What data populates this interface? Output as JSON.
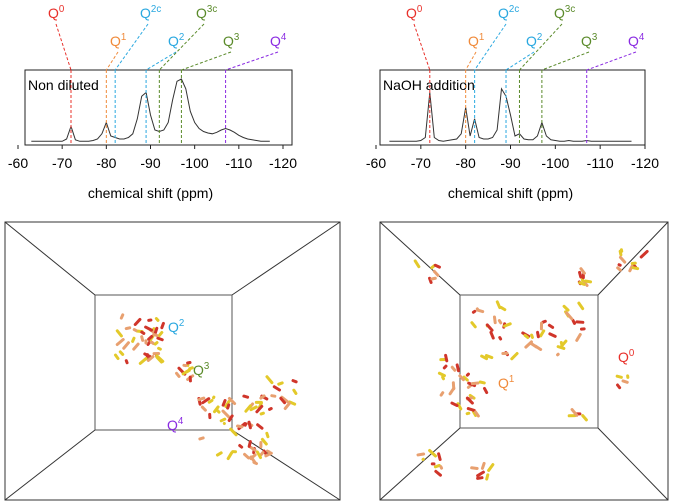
{
  "chart_data": [
    {
      "type": "line",
      "annotation": "Non diluted",
      "xlabel": "chemical shift (ppm)",
      "xlim": [
        -60,
        -120
      ],
      "ylim": [
        0,
        1
      ],
      "xticks": [
        -60,
        -70,
        -80,
        -90,
        -100,
        -110,
        -120
      ],
      "color": "#333333",
      "x": [
        -63,
        -64,
        -65,
        -66,
        -67,
        -68,
        -69,
        -70,
        -71,
        -72,
        -73,
        -74,
        -75,
        -76,
        -77,
        -78,
        -79,
        -80,
        -81,
        -82,
        -83,
        -84,
        -85,
        -86,
        -87,
        -88,
        -89,
        -90,
        -91,
        -92,
        -93,
        -94,
        -95,
        -96,
        -97,
        -98,
        -99,
        -100,
        -101,
        -102,
        -103,
        -104,
        -105,
        -106,
        -107,
        -108,
        -109,
        -110,
        -111,
        -112,
        -113,
        -114,
        -115,
        -116,
        -117
      ],
      "values": [
        0.05,
        0.05,
        0.05,
        0.05,
        0.05,
        0.05,
        0.05,
        0.05,
        0.08,
        0.25,
        0.07,
        0.05,
        0.05,
        0.05,
        0.06,
        0.08,
        0.15,
        0.3,
        0.12,
        0.1,
        0.08,
        0.08,
        0.1,
        0.15,
        0.35,
        0.65,
        0.7,
        0.4,
        0.2,
        0.18,
        0.2,
        0.3,
        0.6,
        0.85,
        0.88,
        0.75,
        0.45,
        0.3,
        0.22,
        0.18,
        0.16,
        0.15,
        0.17,
        0.2,
        0.22,
        0.2,
        0.17,
        0.13,
        0.1,
        0.08,
        0.07,
        0.06,
        0.05,
        0.05,
        0.05
      ],
      "peak_labels": [
        {
          "text": "Q",
          "superscript": "0",
          "x": -72,
          "color": "#e8302a"
        },
        {
          "text": "Q",
          "superscript": "1",
          "x": -80,
          "color": "#f08a3a"
        },
        {
          "text": "Q",
          "superscript": "2c",
          "x": -82,
          "color": "#2aa8e0"
        },
        {
          "text": "Q",
          "superscript": "2",
          "x": -89,
          "color": "#2aa8e0"
        },
        {
          "text": "Q",
          "superscript": "3c",
          "x": -92,
          "color": "#5a8a2a"
        },
        {
          "text": "Q",
          "superscript": "3",
          "x": -97,
          "color": "#5a8a2a"
        },
        {
          "text": "Q",
          "superscript": "4",
          "x": -107,
          "color": "#8a2be2"
        }
      ]
    },
    {
      "type": "line",
      "annotation": "NaOH addition",
      "xlabel": "chemical shift (ppm)",
      "xlim": [
        -60,
        -120
      ],
      "ylim": [
        0,
        1
      ],
      "xticks": [
        -60,
        -70,
        -80,
        -90,
        -100,
        -110,
        -120
      ],
      "color": "#333333",
      "x": [
        -63,
        -64,
        -65,
        -66,
        -67,
        -68,
        -69,
        -70,
        -71,
        -72,
        -73,
        -74,
        -75,
        -76,
        -77,
        -78,
        -79,
        -80,
        -81,
        -82,
        -83,
        -84,
        -85,
        -86,
        -87,
        -88,
        -89,
        -90,
        -91,
        -92,
        -93,
        -94,
        -95,
        -96,
        -97,
        -98,
        -99,
        -100,
        -101,
        -102,
        -103,
        -104,
        -105,
        -106,
        -107,
        -108,
        -109,
        -110,
        -111,
        -112,
        -113,
        -114,
        -115,
        -116,
        -117
      ],
      "values": [
        0.05,
        0.05,
        0.05,
        0.05,
        0.05,
        0.05,
        0.05,
        0.06,
        0.1,
        0.7,
        0.1,
        0.06,
        0.05,
        0.06,
        0.07,
        0.08,
        0.15,
        0.5,
        0.12,
        0.35,
        0.1,
        0.08,
        0.08,
        0.1,
        0.2,
        0.75,
        0.65,
        0.4,
        0.12,
        0.15,
        0.08,
        0.07,
        0.07,
        0.12,
        0.3,
        0.12,
        0.07,
        0.06,
        0.05,
        0.05,
        0.06,
        0.05,
        0.05,
        0.05,
        0.06,
        0.05,
        0.05,
        0.05,
        0.05,
        0.05,
        0.05,
        0.05,
        0.05,
        0.05,
        0.05
      ],
      "peak_labels": [
        {
          "text": "Q",
          "superscript": "0",
          "x": -72,
          "color": "#e8302a"
        },
        {
          "text": "Q",
          "superscript": "1",
          "x": -80,
          "color": "#f08a3a"
        },
        {
          "text": "Q",
          "superscript": "2c",
          "x": -82,
          "color": "#2aa8e0"
        },
        {
          "text": "Q",
          "superscript": "2",
          "x": -89,
          "color": "#2aa8e0"
        },
        {
          "text": "Q",
          "superscript": "3c",
          "x": -92,
          "color": "#5a8a2a"
        },
        {
          "text": "Q",
          "superscript": "3",
          "x": -97,
          "color": "#5a8a2a"
        },
        {
          "text": "Q",
          "superscript": "4",
          "x": -107,
          "color": "#8a2be2"
        }
      ]
    }
  ],
  "snapshots": [
    {
      "labels": [
        {
          "text": "Q",
          "superscript": "2",
          "color": "#2aa8e0"
        },
        {
          "text": "Q",
          "superscript": "3",
          "color": "#5a8a2a"
        },
        {
          "text": "Q",
          "superscript": "4",
          "color": "#8a2be2"
        }
      ]
    },
    {
      "labels": [
        {
          "text": "Q",
          "superscript": "0",
          "color": "#e8302a"
        },
        {
          "text": "Q",
          "superscript": "1",
          "color": "#f08a3a"
        }
      ]
    }
  ]
}
